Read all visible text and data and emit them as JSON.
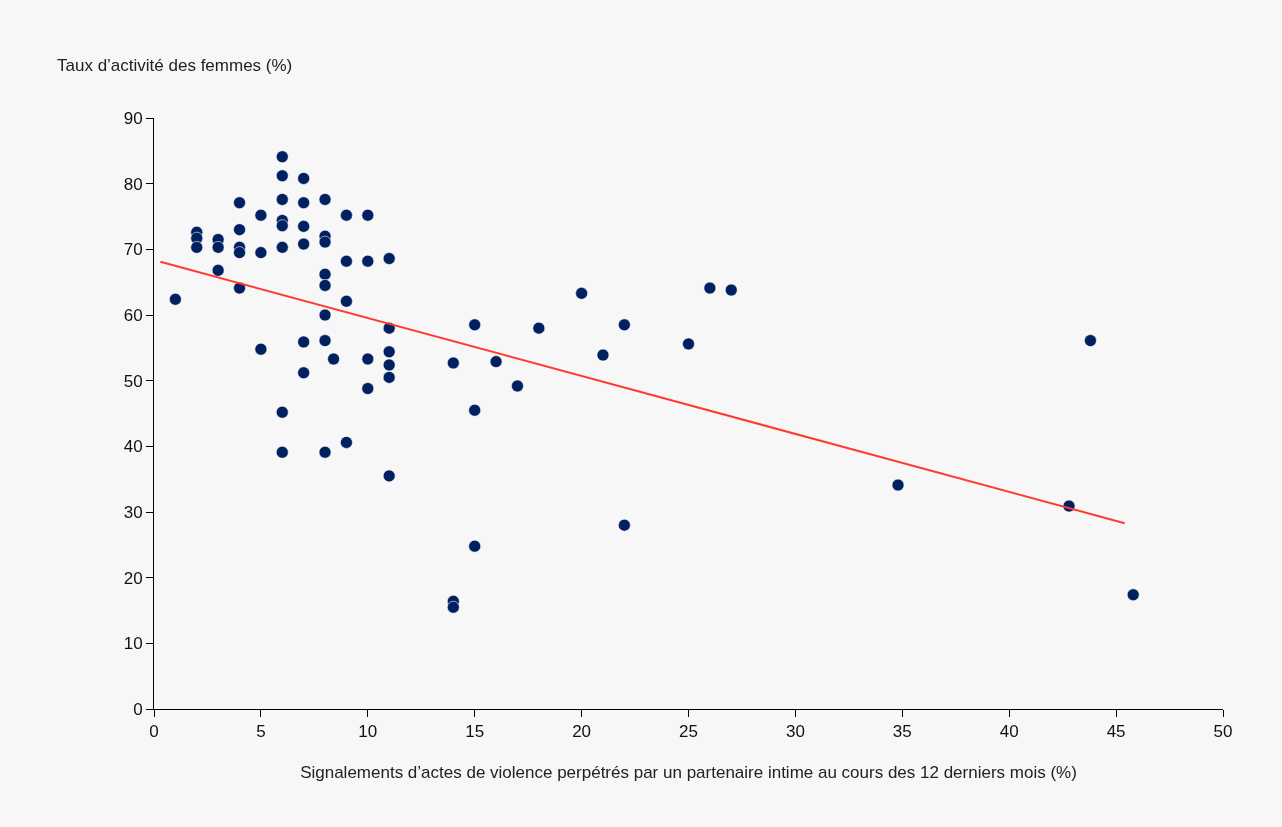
{
  "chart_data": {
    "type": "scatter",
    "xlabel": "Signalements d’actes de violence perpétrés par un partenaire intime au cours des 12 derniers mois (%)",
    "ylabel": "Taux d’activité des femmes (%)",
    "xlim": [
      0,
      50
    ],
    "xticks": [
      0,
      5,
      10,
      15,
      20,
      25,
      30,
      35,
      40,
      45,
      50
    ],
    "ylim": [
      0,
      90
    ],
    "yticks": [
      0,
      10,
      20,
      30,
      40,
      50,
      60,
      70,
      80,
      90
    ],
    "grid": false,
    "series": [
      {
        "marker": "circle",
        "color": "#002060",
        "x": [
          1,
          2,
          2,
          2,
          3,
          3,
          3,
          4,
          4,
          4,
          4,
          4,
          5,
          5,
          5,
          6,
          6,
          6,
          6,
          6,
          6,
          6,
          6,
          7,
          7,
          7,
          7,
          7,
          7,
          8,
          8,
          8,
          8,
          8,
          8,
          8,
          8,
          8.4,
          9,
          9,
          9,
          9,
          10,
          10,
          10,
          10,
          11,
          11,
          11,
          11,
          11,
          11,
          14,
          14,
          14,
          15,
          15,
          15,
          16,
          17,
          18,
          20,
          21,
          22,
          22,
          25,
          26,
          27,
          34.8,
          42.8,
          43.8,
          45.8
        ],
        "values": [
          62.4,
          72.6,
          71.7,
          70.3,
          71.5,
          70.3,
          66.8,
          77.1,
          73.0,
          70.3,
          69.5,
          64.1,
          75.2,
          69.5,
          54.8,
          84.1,
          81.2,
          77.6,
          74.4,
          73.6,
          70.3,
          45.2,
          39.1,
          80.8,
          77.1,
          73.5,
          70.8,
          55.9,
          51.2,
          77.6,
          72.0,
          71.1,
          66.2,
          64.5,
          60.0,
          56.1,
          39.1,
          53.3,
          75.2,
          68.2,
          62.1,
          40.6,
          75.2,
          68.2,
          53.3,
          48.8,
          68.6,
          58.0,
          54.4,
          52.4,
          50.5,
          35.5,
          52.7,
          16.4,
          15.5,
          58.5,
          45.5,
          24.8,
          52.9,
          49.2,
          58.0,
          63.3,
          53.9,
          58.5,
          28.0,
          55.6,
          64.1,
          63.8,
          34.1,
          30.9,
          56.1,
          17.4
        ]
      },
      {
        "type": "line",
        "marker": "none",
        "color": "#ff3b2f",
        "line_style": "solid",
        "x": [
          0.3,
          45.4
        ],
        "values": [
          68.1,
          28.3
        ]
      }
    ]
  }
}
